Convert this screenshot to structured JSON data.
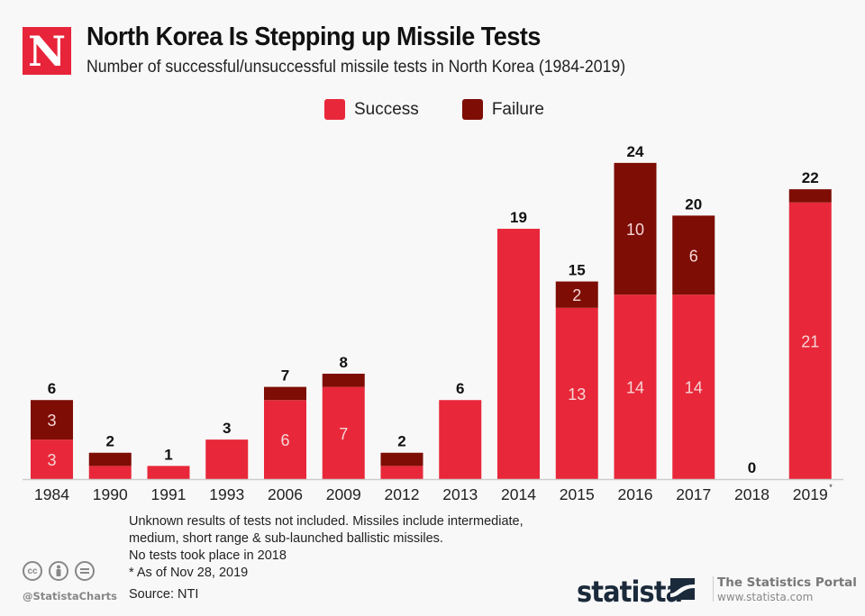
{
  "header": {
    "logo_letter": "N",
    "title": "North Korea Is Stepping up Missile Tests",
    "subtitle": "Number of successful/unsuccessful missile tests in North Korea (1984-2019)"
  },
  "colors": {
    "success": "#e8283a",
    "failure": "#7d0d05",
    "axis": "#cccccc",
    "background": "#f8f8f8"
  },
  "chart_data": {
    "type": "bar",
    "stacked": true,
    "title": "North Korea Is Stepping up Missile Tests",
    "subtitle": "Number of successful/unsuccessful missile tests in North Korea (1984-2019)",
    "xlabel": "",
    "ylabel": "",
    "ylim": [
      0,
      24
    ],
    "grid": false,
    "legend_position": "top-center",
    "categories": [
      "1984",
      "1990",
      "1991",
      "1993",
      "2006",
      "2009",
      "2012",
      "2013",
      "2014",
      "2015",
      "2016",
      "2017",
      "2018",
      "2019"
    ],
    "category_footnotes": [
      "",
      "",
      "",
      "",
      "",
      "",
      "",
      "",
      "",
      "",
      "",
      "",
      "",
      "*"
    ],
    "series": [
      {
        "name": "Success",
        "color": "#e8283a",
        "values": [
          3,
          1,
          1,
          3,
          6,
          7,
          1,
          6,
          19,
          13,
          14,
          14,
          0,
          21
        ],
        "labels": [
          "3",
          "",
          "",
          "",
          "6",
          "7",
          "",
          "",
          "",
          "13",
          "14",
          "14",
          "",
          "21"
        ]
      },
      {
        "name": "Failure",
        "color": "#7d0d05",
        "values": [
          3,
          1,
          0,
          0,
          1,
          1,
          1,
          0,
          0,
          2,
          10,
          6,
          0,
          1
        ],
        "labels": [
          "3",
          "",
          "",
          "",
          "",
          "",
          "",
          "",
          "",
          "2",
          "10",
          "6",
          "",
          ""
        ]
      }
    ],
    "totals": [
      6,
      2,
      1,
      3,
      7,
      8,
      2,
      6,
      19,
      15,
      24,
      20,
      0,
      22
    ]
  },
  "legend": [
    {
      "label": "Success",
      "color": "#e8283a"
    },
    {
      "label": "Failure",
      "color": "#7d0d05"
    }
  ],
  "footer": {
    "notes": [
      "Unknown results of tests not included. Missiles include intermediate,",
      "medium, short range & sub-launched ballistic missiles.",
      "No tests took place in 2018",
      "* As of Nov 28, 2019"
    ],
    "source": "Source: NTI",
    "handle": "@StatistaCharts",
    "cc_icons": [
      "cc",
      "by",
      "nd"
    ],
    "brand": "statista",
    "portal_title": "The Statistics Portal",
    "portal_url": "www.statista.com"
  }
}
